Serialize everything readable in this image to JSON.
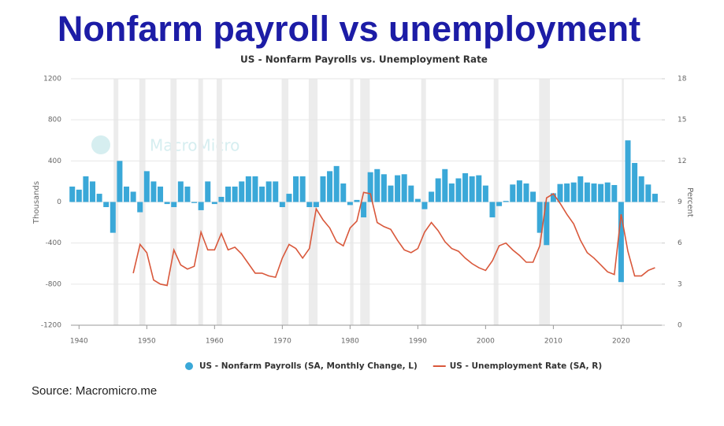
{
  "header": {
    "title": "Nonfarm payroll vs unemployment"
  },
  "chart_data": {
    "type": "bar-line",
    "title": "US - Nonfarm Payrolls vs. Unemployment Rate",
    "watermark": "MacroMicro",
    "y_label": "Thousands",
    "y2_label": "Percent",
    "x": [
      1939,
      1940,
      1941,
      1942,
      1943,
      1944,
      1945,
      1946,
      1947,
      1948,
      1949,
      1950,
      1951,
      1952,
      1953,
      1954,
      1955,
      1956,
      1957,
      1958,
      1959,
      1960,
      1961,
      1962,
      1963,
      1964,
      1965,
      1966,
      1967,
      1968,
      1969,
      1970,
      1971,
      1972,
      1973,
      1974,
      1975,
      1976,
      1977,
      1978,
      1979,
      1980,
      1981,
      1982,
      1983,
      1984,
      1985,
      1986,
      1987,
      1988,
      1989,
      1990,
      1991,
      1992,
      1993,
      1994,
      1995,
      1996,
      1997,
      1998,
      1999,
      2000,
      2001,
      2002,
      2003,
      2004,
      2005,
      2006,
      2007,
      2008,
      2009,
      2010,
      2011,
      2012,
      2013,
      2014,
      2015,
      2016,
      2017,
      2018,
      2019,
      2020,
      2021,
      2022,
      2023,
      2024,
      2025
    ],
    "xlim": [
      1938.8,
      2026
    ],
    "xticks": [
      1940,
      1950,
      1960,
      1970,
      1980,
      1990,
      2000,
      2010,
      2020
    ],
    "ylim": [
      -1200,
      1200
    ],
    "yticks": [
      -1200,
      -800,
      -400,
      0,
      400,
      800,
      1200
    ],
    "y2lim": [
      0,
      18
    ],
    "y2ticks": [
      0,
      3,
      6,
      9,
      12,
      15,
      18
    ],
    "recessions": [
      [
        1945.1,
        1945.8
      ],
      [
        1948.9,
        1949.8
      ],
      [
        1953.5,
        1954.4
      ],
      [
        1957.6,
        1958.3
      ],
      [
        1960.3,
        1961.1
      ],
      [
        1969.9,
        1970.9
      ],
      [
        1973.9,
        1975.2
      ],
      [
        1980.0,
        1980.5
      ],
      [
        1981.5,
        1982.9
      ],
      [
        1990.5,
        1991.2
      ],
      [
        2001.2,
        2001.9
      ],
      [
        2007.9,
        2009.5
      ],
      [
        2020.1,
        2020.4
      ]
    ],
    "recession_color": "#ececec",
    "series": [
      {
        "name": "US - Nonfarm Payrolls (SA, Monthly Change, L)",
        "color": "#3aa8d8",
        "values": [
          150,
          120,
          250,
          200,
          80,
          -50,
          -300,
          400,
          150,
          100,
          -100,
          300,
          200,
          150,
          -20,
          -50,
          200,
          150,
          -10,
          -80,
          200,
          -20,
          50,
          150,
          150,
          200,
          250,
          250,
          150,
          200,
          200,
          -50,
          80,
          250,
          250,
          -50,
          -50,
          250,
          300,
          350,
          180,
          -30,
          20,
          -150,
          290,
          320,
          270,
          160,
          260,
          270,
          160,
          30,
          -70,
          100,
          230,
          320,
          180,
          230,
          280,
          250,
          260,
          160,
          -150,
          -40,
          10,
          170,
          210,
          180,
          100,
          -300,
          -420,
          85,
          175,
          180,
          190,
          250,
          190,
          180,
          175,
          190,
          165,
          -780,
          600,
          380,
          250,
          170,
          80
        ]
      },
      {
        "name": "US - Unemployment Rate (SA, R)",
        "color": "#d9583b",
        "axis": "y2",
        "values": [
          null,
          null,
          null,
          null,
          null,
          null,
          null,
          null,
          null,
          3.8,
          5.9,
          5.3,
          3.3,
          3.0,
          2.9,
          5.5,
          4.4,
          4.1,
          4.3,
          6.8,
          5.5,
          5.5,
          6.7,
          5.5,
          5.7,
          5.2,
          4.5,
          3.8,
          3.8,
          3.6,
          3.5,
          4.9,
          5.9,
          5.6,
          4.9,
          5.6,
          8.5,
          7.7,
          7.1,
          6.1,
          5.8,
          7.1,
          7.6,
          9.7,
          9.6,
          7.5,
          7.2,
          7.0,
          6.2,
          5.5,
          5.3,
          5.6,
          6.8,
          7.5,
          6.9,
          6.1,
          5.6,
          5.4,
          4.9,
          4.5,
          4.2,
          4.0,
          4.7,
          5.8,
          6.0,
          5.5,
          5.1,
          4.6,
          4.6,
          5.8,
          9.3,
          9.6,
          8.9,
          8.1,
          7.4,
          6.2,
          5.3,
          4.9,
          4.4,
          3.9,
          3.7,
          8.1,
          5.4,
          3.6,
          3.6,
          4.0,
          4.2
        ]
      }
    ]
  },
  "footer": {
    "source": "Source: Macromicro.me"
  }
}
